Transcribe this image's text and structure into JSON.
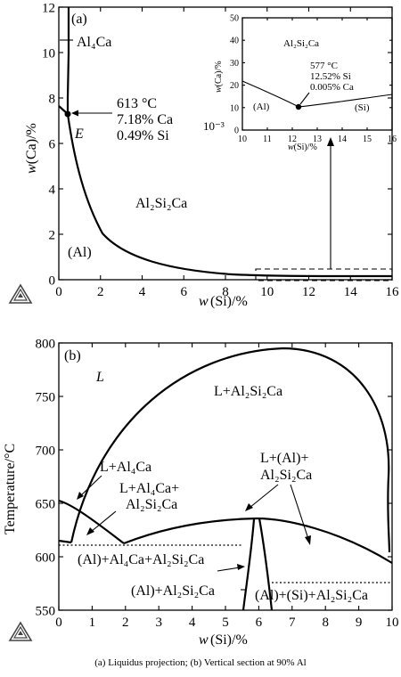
{
  "panel_a": {
    "tag": "(a)",
    "xlabel_var": "w",
    "xlabel_rest": "(Si)/%",
    "ylabel_var": "w",
    "ylabel_rest": "(Ca)/%",
    "xticks": [
      "0",
      "2",
      "4",
      "6",
      "8",
      "10",
      "12",
      "14",
      "16"
    ],
    "yticks": [
      "0",
      "2",
      "4",
      "6",
      "8",
      "10",
      "12"
    ],
    "phase_al4ca": "Al₄Ca",
    "phase_al2si2ca": "Al₂Si₂Ca",
    "phase_al": "(Al)",
    "point_label": "E",
    "annot_temp": "613 °C",
    "annot_ca": "7.18% Ca",
    "annot_si": "0.49% Si",
    "scale_note": "10⁻³",
    "inset": {
      "xlabel_var": "w",
      "xlabel_rest": "(Si)/%",
      "ylabel_var": "w",
      "ylabel_rest": "(Ca)/%",
      "xticks": [
        "10",
        "11",
        "12",
        "13",
        "14",
        "15",
        "16"
      ],
      "yticks": [
        "0",
        "10",
        "20",
        "30",
        "40",
        "50"
      ],
      "phase_top": "Al₂Si₂Ca",
      "phase_left": "(Al)",
      "phase_right": "(Si)",
      "annot_temp": "577 °C",
      "annot_si": "12.52% Si",
      "annot_ca": "0.005% Ca"
    }
  },
  "panel_b": {
    "tag": "(b)",
    "xlabel_var": "w",
    "xlabel_rest": "(Si)/%",
    "ylabel": "Temperature/°C",
    "xticks": [
      "0",
      "1",
      "2",
      "3",
      "4",
      "5",
      "6",
      "7",
      "8",
      "9",
      "10"
    ],
    "yticks": [
      "550",
      "600",
      "650",
      "700",
      "750",
      "800"
    ],
    "region_L": "L",
    "region_L_al2si2ca": "L+Al₂Si₂Ca",
    "region_L_al4ca": "L+Al₄Ca",
    "region_L_al4ca_al2si2ca_1": "L+Al₄Ca+",
    "region_L_al4ca_al2si2ca_2": "Al₂Si₂Ca",
    "region_L_al_al2si2ca_1": "L+(Al)+",
    "region_L_al_al2si2ca_2": "Al₂Si₂Ca",
    "region_al_al4ca_al2si2ca": "(Al)+Al₄Ca+Al₂Si₂Ca",
    "region_al_al2si2ca": "(Al)+Al₂Si₂Ca",
    "region_al_si_al2si2ca": "(Al)+(Si)+Al₂Si₂Ca"
  },
  "caption": "(a)  Liquidus  projection;  (b) Vertical section at 90% Al"
}
